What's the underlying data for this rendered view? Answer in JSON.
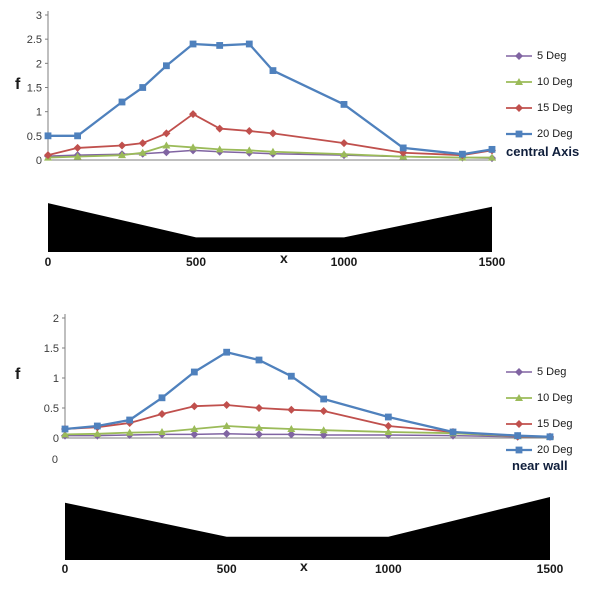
{
  "figure": {
    "background": "#ffffff"
  },
  "chart_data": [
    {
      "type": "line",
      "caption": "central Axis",
      "xlabel": "x",
      "ylabel": "f",
      "xlim": [
        0,
        1500
      ],
      "ylim": [
        0,
        3
      ],
      "xticks": [
        0,
        500,
        1000,
        1500
      ],
      "yticks": [
        0,
        0.5,
        1,
        1.5,
        2,
        2.5,
        3
      ],
      "grid": false,
      "legend_position": "right",
      "x": [
        0,
        100,
        250,
        320,
        400,
        490,
        580,
        680,
        760,
        1000,
        1200,
        1400,
        1500
      ],
      "series": [
        {
          "name": "5 Deg",
          "color": "#8064A2",
          "marker": "diamond",
          "line_width": 1.5,
          "values": [
            0.08,
            0.1,
            0.12,
            0.13,
            0.16,
            0.2,
            0.17,
            0.15,
            0.13,
            0.1,
            0.07,
            0.05,
            0.04
          ]
        },
        {
          "name": "10 Deg",
          "color": "#9BBB59",
          "marker": "triangle",
          "line_width": 1.8,
          "values": [
            0.05,
            0.07,
            0.1,
            0.15,
            0.3,
            0.26,
            0.22,
            0.2,
            0.17,
            0.12,
            0.07,
            0.05,
            0.05
          ]
        },
        {
          "name": "15 Deg",
          "color": "#C0504D",
          "marker": "diamond",
          "line_width": 1.8,
          "values": [
            0.1,
            0.25,
            0.3,
            0.35,
            0.55,
            0.95,
            0.65,
            0.6,
            0.55,
            0.35,
            0.15,
            0.1,
            0.2
          ]
        },
        {
          "name": "20 Deg",
          "color": "#4F81BD",
          "marker": "square",
          "line_width": 2.3,
          "values": [
            0.5,
            0.5,
            1.2,
            1.5,
            1.95,
            2.4,
            2.37,
            2.4,
            1.85,
            1.15,
            0.25,
            0.12,
            0.22
          ]
        }
      ],
      "silhouette_profile": [
        [
          0,
          0.94
        ],
        [
          500,
          0.28
        ],
        [
          1000,
          0.28
        ],
        [
          1500,
          0.87
        ]
      ]
    },
    {
      "type": "line",
      "caption": "near wall",
      "xlabel": "x",
      "ylabel": "f",
      "xlim": [
        0,
        1500
      ],
      "ylim": [
        0,
        2
      ],
      "xticks": [
        0,
        500,
        1000,
        1500
      ],
      "yticks": [
        0,
        0.5,
        1,
        1.5,
        2
      ],
      "extra_zero_label": "0",
      "grid": false,
      "legend_position": "right",
      "x": [
        0,
        100,
        200,
        300,
        400,
        500,
        600,
        700,
        800,
        1000,
        1200,
        1400,
        1500
      ],
      "series": [
        {
          "name": "5 Deg",
          "color": "#8064A2",
          "marker": "diamond",
          "line_width": 1.5,
          "values": [
            0.04,
            0.04,
            0.05,
            0.06,
            0.06,
            0.07,
            0.06,
            0.06,
            0.05,
            0.05,
            0.04,
            0.02,
            0.02
          ]
        },
        {
          "name": "10 Deg",
          "color": "#9BBB59",
          "marker": "triangle",
          "line_width": 1.8,
          "values": [
            0.06,
            0.07,
            0.09,
            0.1,
            0.15,
            0.2,
            0.17,
            0.15,
            0.13,
            0.1,
            0.08,
            0.03,
            0.02
          ]
        },
        {
          "name": "15 Deg",
          "color": "#C0504D",
          "marker": "diamond",
          "line_width": 1.8,
          "values": [
            0.15,
            0.18,
            0.25,
            0.4,
            0.53,
            0.55,
            0.5,
            0.47,
            0.45,
            0.2,
            0.1,
            0.03,
            0.02
          ]
        },
        {
          "name": "20 Deg",
          "color": "#4F81BD",
          "marker": "square",
          "line_width": 2.3,
          "values": [
            0.15,
            0.2,
            0.3,
            0.67,
            1.1,
            1.43,
            1.3,
            1.03,
            0.65,
            0.35,
            0.1,
            0.04,
            0.02
          ]
        }
      ],
      "silhouette_profile": [
        [
          0,
          0.91
        ],
        [
          500,
          0.37
        ],
        [
          1000,
          0.37
        ],
        [
          1500,
          1.0
        ]
      ]
    }
  ]
}
